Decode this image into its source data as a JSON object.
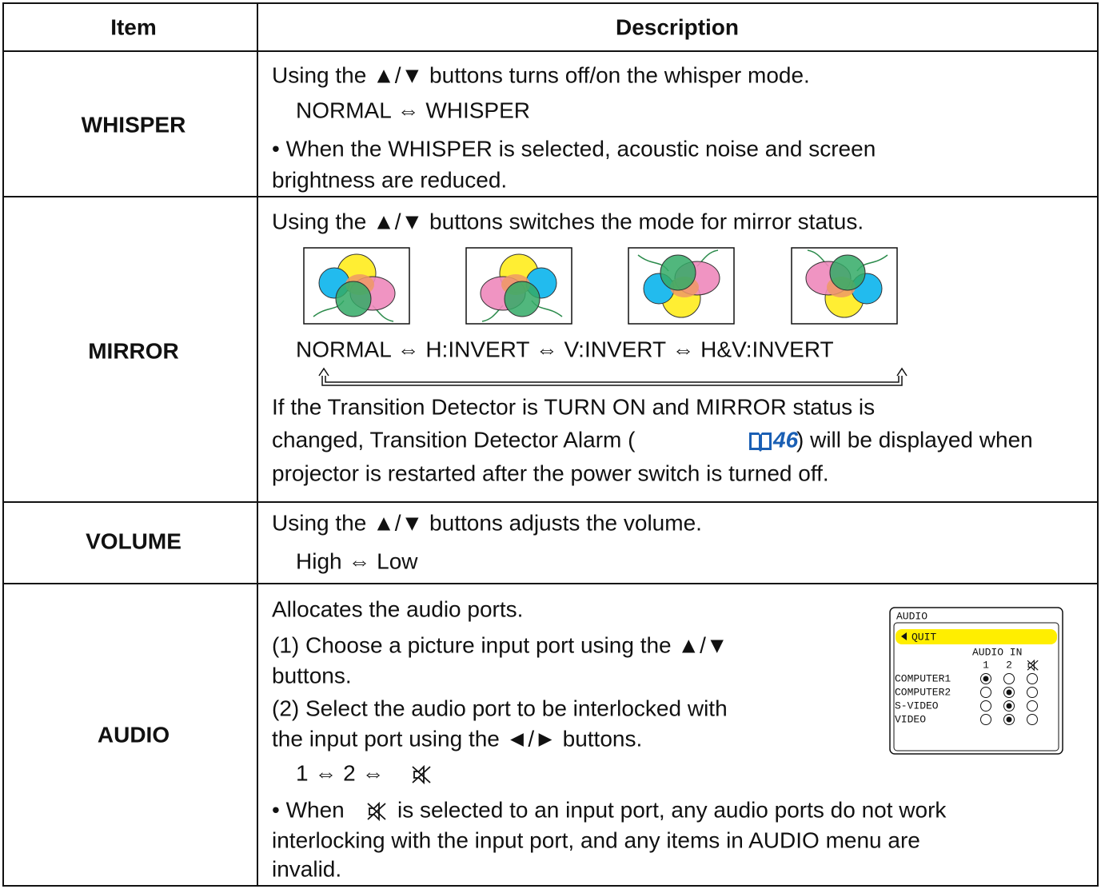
{
  "table": {
    "header": {
      "item": "Item",
      "description": "Description"
    },
    "rows": [
      {
        "item": "WHISPER",
        "text": [
          "Using the ▲/▼ buttons turns off/on the whisper mode.",
          "NORMAL ⇔ WHISPER",
          "• When the WHISPER is selected, acoustic noise and screen",
          "brightness are reduced."
        ]
      },
      {
        "item": "MIRROR",
        "intro": "Using the ▲/▼ buttons switches the mode for mirror status.",
        "modes": "NORMAL ⇔ H:INVERT ⇔ V:INVERT ⇔ H&V:INVERT",
        "note": [
          "If the Transition Detector is TURN ON and MIRROR status is",
          "changed, Transition Detector Alarm (",
          "46",
          ") will be displayed when",
          "projector is restarted after the power switch is turned off."
        ]
      },
      {
        "item": "VOLUME",
        "text": [
          "Using the ▲/▼ buttons adjusts the volume.",
          "High ⇔ Low"
        ]
      },
      {
        "item": "AUDIO",
        "text": [
          "Allocates the audio ports.",
          "(1) Choose a picture input port using the ▲/▼",
          "buttons.",
          "(2) Select the audio port to be interlocked with",
          "the input port using the ◄/► buttons.",
          "1 ⇔ 2 ⇔",
          "• When",
          "is selected to an input port, any audio ports do not work",
          "interlocking with the input port, and any items in AUDIO menu are",
          "invalid."
        ],
        "menu": {
          "title": "AUDIO",
          "quit": "QUIT",
          "column_header": "AUDIO IN",
          "ports": [
            "1",
            "2"
          ],
          "rows": [
            "COMPUTER1",
            "COMPUTER2",
            "S-VIDEO",
            "VIDEO"
          ]
        }
      }
    ]
  }
}
